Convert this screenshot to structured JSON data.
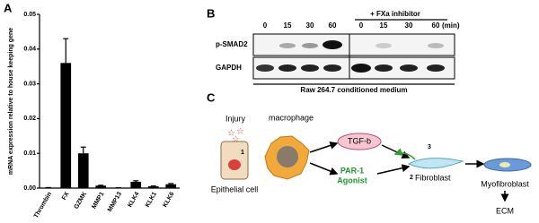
{
  "chart_data": {
    "type": "bar",
    "panel": "A",
    "ylabel": "mRNA expression relative to house keeping gene",
    "categories": [
      "Thrombin",
      "FX",
      "GZMK",
      "MMP1",
      "MMP13",
      "KLK4",
      "KLK1",
      "KLK6"
    ],
    "values": [
      0.0001,
      0.036,
      0.01,
      0.0007,
      5e-05,
      0.0018,
      0.0005,
      0.0011
    ],
    "errors": [
      5e-05,
      0.007,
      0.0018,
      0.0001,
      3e-05,
      0.0003,
      0.0001,
      0.0002
    ],
    "color": "#000000",
    "ylim": [
      0,
      0.05
    ],
    "yticks": [
      {
        "value": 0,
        "label": "0.00"
      },
      0.01,
      0.02,
      0.03,
      0.04,
      0.05
    ]
  },
  "blot": {
    "panel": "B",
    "inhibitor": "+ FXa inhibitor",
    "lanes": [
      0,
      15,
      30,
      60,
      0,
      15,
      30,
      60
    ],
    "unit": "(min)",
    "rows": [
      "p-SMAD2",
      "GAPDH"
    ],
    "caption": "Raw 264.7 conditioned medium"
  },
  "diagram": {
    "panel": "C",
    "injury": "Injury",
    "macrophage": "macrophage",
    "epithelial": "Epithelial cell",
    "tgf": "TGF-b",
    "par1": [
      "PAR-1",
      "Agonist"
    ],
    "fibroblast": "Fibroblast",
    "myofibroblast": "Myofibroblast",
    "ecm": "ECM",
    "steps": [
      "1",
      "2",
      "3"
    ]
  }
}
